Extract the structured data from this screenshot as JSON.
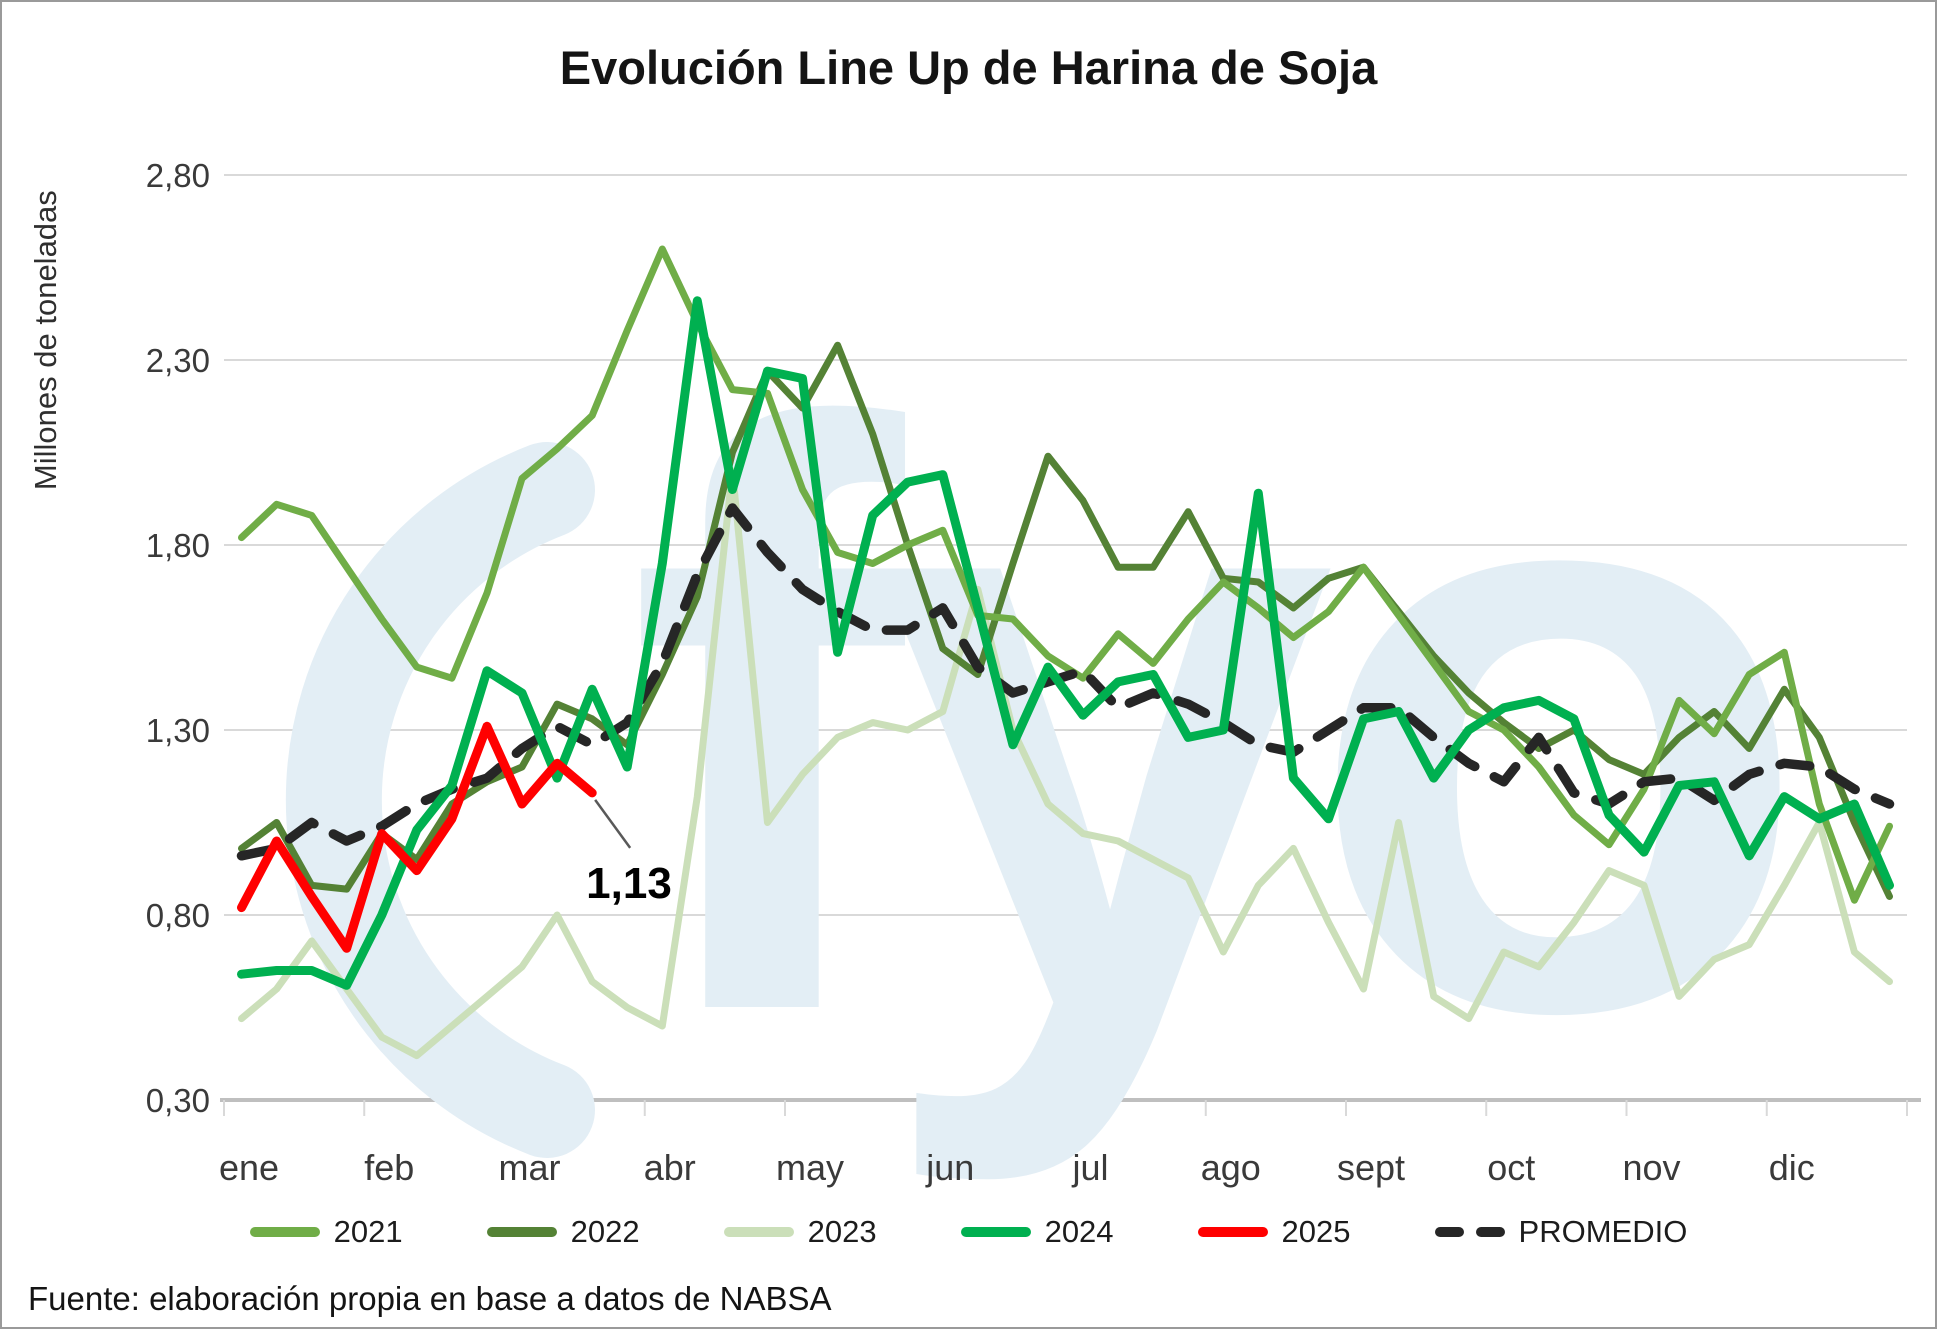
{
  "title": "Evolución Line Up de Harina de Soja",
  "source_note": "Fuente: elaboración propia en base a datos de NABSA",
  "watermark_text": "fyo",
  "colors": {
    "grid": "#d9d9d9",
    "axis": "#bfbfbf",
    "watermark": "#e3eef5",
    "annotation_leader": "#595959",
    "text": "#1c1c1c"
  },
  "chart_data": {
    "type": "line",
    "title": "Evolución Line Up de Harina de Soja",
    "xlabel": "",
    "ylabel": "Millones de toneladas",
    "ylim": [
      0.3,
      2.8
    ],
    "yticks": [
      0.3,
      0.8,
      1.3,
      1.8,
      2.3,
      2.8
    ],
    "ytick_labels": [
      "0,30",
      "0,80",
      "1,30",
      "1,80",
      "2,30",
      "2,80"
    ],
    "months": [
      "ene",
      "feb",
      "mar",
      "abr",
      "may",
      "jun",
      "jul",
      "ago",
      "sept",
      "oct",
      "nov",
      "dic"
    ],
    "points_per_month": 4,
    "grid": "horizontal",
    "legend_position": "bottom",
    "annotation": {
      "text": "1,13",
      "series": "2025",
      "point_index": 10,
      "value": 1.13
    },
    "series": [
      {
        "name": "2023",
        "color": "#cbdfb9",
        "style": "solid",
        "width": 7,
        "values": [
          0.52,
          0.6,
          0.73,
          0.6,
          0.47,
          0.42,
          0.5,
          0.58,
          0.66,
          0.8,
          0.62,
          0.55,
          0.5,
          1.12,
          2.0,
          1.05,
          1.18,
          1.28,
          1.32,
          1.3,
          1.35,
          1.68,
          1.3,
          1.1,
          1.02,
          1.0,
          0.95,
          0.9,
          0.7,
          0.88,
          0.98,
          0.78,
          0.6,
          1.05,
          0.58,
          0.52,
          0.7,
          0.66,
          0.78,
          0.92,
          0.88,
          0.58,
          0.68,
          0.72,
          0.88,
          1.05,
          0.7,
          0.62
        ]
      },
      {
        "name": "2022",
        "color": "#548235",
        "style": "solid",
        "width": 7,
        "values": [
          0.98,
          1.05,
          0.88,
          0.87,
          1.02,
          0.95,
          1.1,
          1.16,
          1.2,
          1.37,
          1.33,
          1.26,
          1.45,
          1.66,
          2.05,
          2.27,
          2.17,
          2.34,
          2.1,
          1.8,
          1.52,
          1.45,
          1.75,
          2.04,
          1.92,
          1.74,
          1.74,
          1.89,
          1.71,
          1.7,
          1.63,
          1.71,
          1.74,
          1.62,
          1.5,
          1.4,
          1.32,
          1.25,
          1.3,
          1.22,
          1.18,
          1.28,
          1.35,
          1.25,
          1.41,
          1.28,
          1.05,
          0.85
        ]
      },
      {
        "name": "2021",
        "color": "#70ad47",
        "style": "solid",
        "width": 7,
        "values": [
          1.82,
          1.91,
          1.88,
          1.74,
          1.6,
          1.47,
          1.44,
          1.67,
          1.98,
          2.06,
          2.15,
          2.38,
          2.6,
          2.4,
          2.22,
          2.21,
          1.95,
          1.78,
          1.75,
          1.8,
          1.84,
          1.61,
          1.6,
          1.5,
          1.44,
          1.56,
          1.48,
          1.6,
          1.7,
          1.63,
          1.55,
          1.62,
          1.74,
          1.61,
          1.48,
          1.35,
          1.3,
          1.2,
          1.07,
          0.99,
          1.14,
          1.38,
          1.29,
          1.45,
          1.51,
          1.1,
          0.84,
          1.04
        ]
      },
      {
        "name": "PROMEDIO",
        "color": "#262626",
        "style": "dashed",
        "width": 9.5,
        "values": [
          0.96,
          0.98,
          1.05,
          1.0,
          1.04,
          1.1,
          1.14,
          1.17,
          1.25,
          1.31,
          1.26,
          1.32,
          1.48,
          1.72,
          1.9,
          1.78,
          1.68,
          1.62,
          1.57,
          1.57,
          1.63,
          1.47,
          1.4,
          1.43,
          1.46,
          1.36,
          1.4,
          1.37,
          1.32,
          1.26,
          1.24,
          1.3,
          1.36,
          1.36,
          1.28,
          1.21,
          1.16,
          1.28,
          1.13,
          1.1,
          1.16,
          1.17,
          1.11,
          1.18,
          1.21,
          1.2,
          1.14,
          1.1
        ]
      },
      {
        "name": "2024",
        "color": "#00b050",
        "style": "solid",
        "width": 9,
        "values": [
          0.64,
          0.65,
          0.65,
          0.61,
          0.8,
          1.03,
          1.15,
          1.46,
          1.4,
          1.17,
          1.41,
          1.2,
          1.75,
          2.46,
          1.95,
          2.27,
          2.25,
          1.51,
          1.88,
          1.97,
          1.99,
          1.63,
          1.26,
          1.47,
          1.34,
          1.43,
          1.45,
          1.28,
          1.3,
          1.94,
          1.17,
          1.06,
          1.33,
          1.35,
          1.17,
          1.3,
          1.36,
          1.38,
          1.33,
          1.07,
          0.97,
          1.15,
          1.16,
          0.96,
          1.12,
          1.06,
          1.1,
          0.88
        ]
      },
      {
        "name": "2025",
        "color": "#ff0000",
        "style": "solid",
        "width": 9,
        "values": [
          0.82,
          1.0,
          0.85,
          0.71,
          1.02,
          0.92,
          1.06,
          1.31,
          1.1,
          1.21,
          1.13
        ]
      }
    ],
    "legend_order": [
      "2021",
      "2022",
      "2023",
      "2024",
      "2025",
      "PROMEDIO"
    ]
  }
}
